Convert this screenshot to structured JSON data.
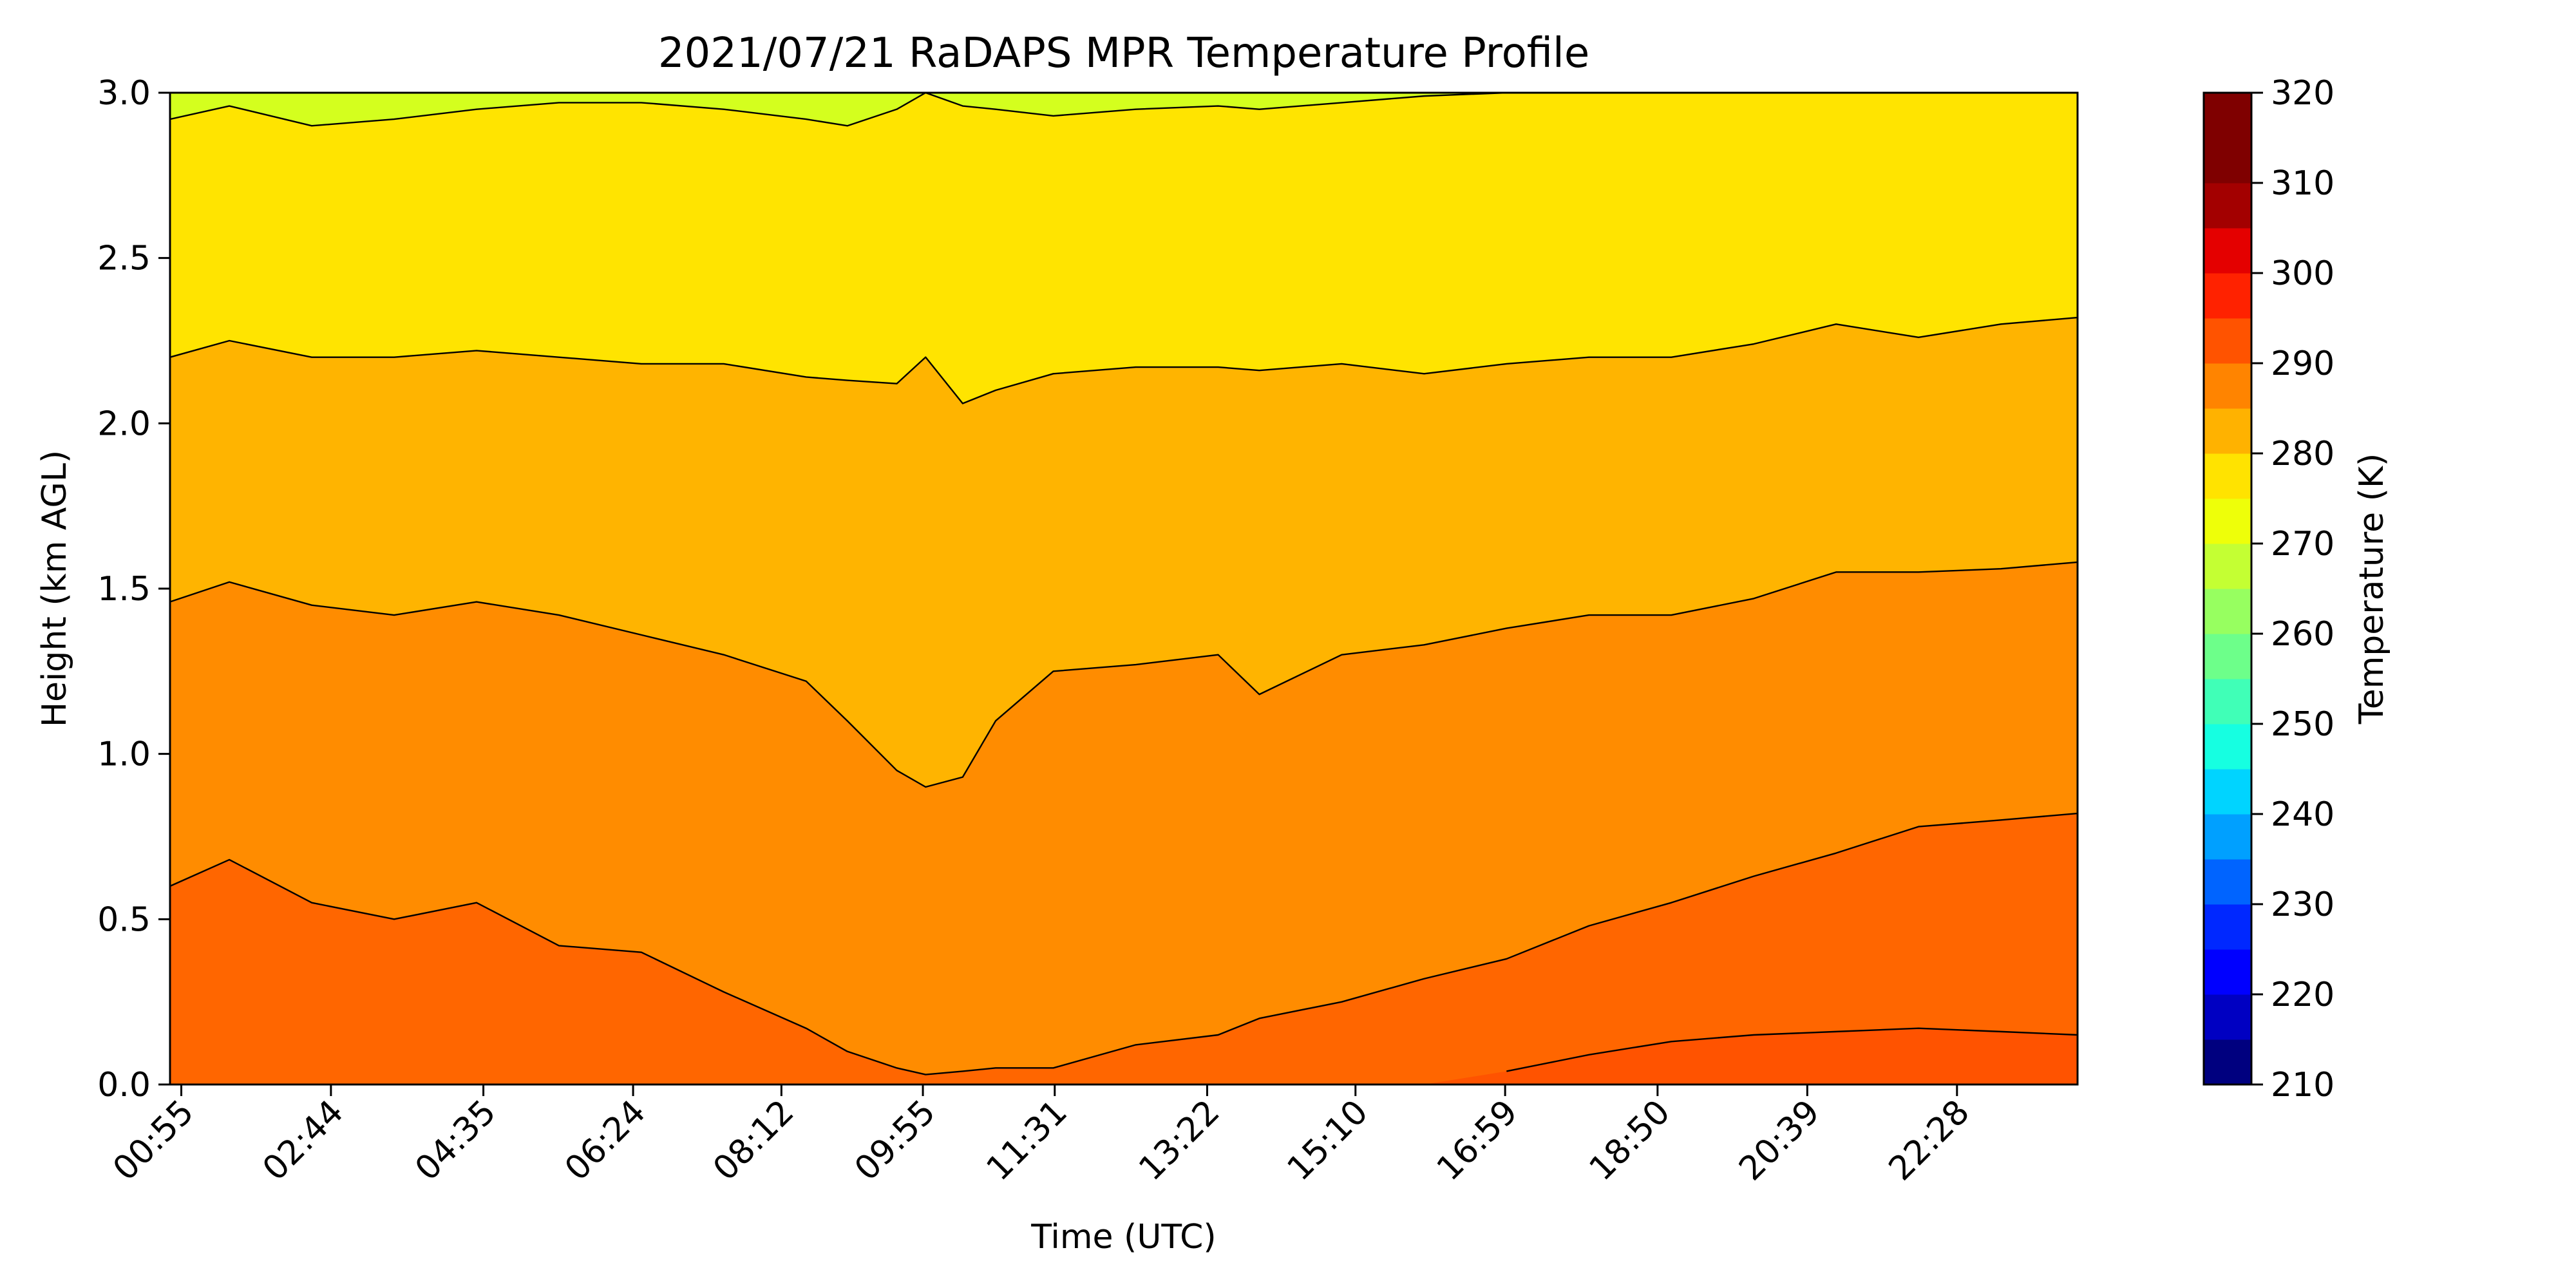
{
  "chart_data": {
    "type": "heatmap",
    "subtype": "filled-contour",
    "title": "2021/07/21 RaDAPS MPR Temperature Profile",
    "xlabel": "Time (UTC)",
    "ylabel": "Height (km AGL)",
    "ylim": [
      0,
      3.0
    ],
    "yticks": [
      "0.0",
      "0.5",
      "1.0",
      "1.5",
      "2.0",
      "2.5",
      "3.0"
    ],
    "xlim_hours": [
      0.78,
      23.93
    ],
    "xticks": [
      {
        "hour": 0.917,
        "label": "00:55"
      },
      {
        "hour": 2.733,
        "label": "02:44"
      },
      {
        "hour": 4.583,
        "label": "04:35"
      },
      {
        "hour": 6.4,
        "label": "06:24"
      },
      {
        "hour": 8.2,
        "label": "08:12"
      },
      {
        "hour": 9.917,
        "label": "09:55"
      },
      {
        "hour": 11.517,
        "label": "11:31"
      },
      {
        "hour": 13.367,
        "label": "13:22"
      },
      {
        "hour": 15.167,
        "label": "15:10"
      },
      {
        "hour": 16.983,
        "label": "16:59"
      },
      {
        "hour": 18.833,
        "label": "18:50"
      },
      {
        "hour": 20.65,
        "label": "20:39"
      },
      {
        "hour": 22.467,
        "label": "22:28"
      }
    ],
    "colorbar": {
      "label": "Temperature (K)",
      "min": 210,
      "max": 320,
      "step": 5,
      "ticks": [
        "210",
        "220",
        "230",
        "240",
        "250",
        "260",
        "270",
        "280",
        "290",
        "300",
        "310",
        "320"
      ],
      "colors": [
        "#00007f",
        "#0000c2",
        "#0000ff",
        "#0028ff",
        "#0064ff",
        "#00a0ff",
        "#00d4ff",
        "#16ffe1",
        "#40ffb7",
        "#6dff8a",
        "#97ff60",
        "#c4ff33",
        "#eeff09",
        "#ffe300",
        "#ffb200",
        "#ff8400",
        "#ff5300",
        "#ff2200",
        "#e40000",
        "#a30000",
        "#7f0000",
        "#7f0000"
      ]
    },
    "contour_bands_K": [
      {
        "range": "300-305",
        "color": "#ff5300"
      },
      {
        "range": "295-300",
        "color": "#ff6600"
      },
      {
        "range": "290-295",
        "color": "#ff8c00"
      },
      {
        "range": "285-290",
        "color": "#ffb400"
      },
      {
        "range": "280-285",
        "color": "#ffe400"
      },
      {
        "range": "275-280",
        "color": "#d4ff1e"
      }
    ],
    "contours_km": {
      "hours": [
        0.78,
        1.5,
        2.5,
        3.5,
        4.5,
        5.5,
        6.5,
        7.5,
        8.5,
        9.0,
        9.6,
        9.95,
        10.4,
        10.8,
        11.5,
        12.5,
        13.5,
        14.0,
        15.0,
        16.0,
        17.0,
        18.0,
        19.0,
        20.0,
        21.0,
        22.0,
        23.0,
        23.93
      ],
      "iso_305": [
        null,
        null,
        null,
        null,
        null,
        null,
        null,
        null,
        null,
        null,
        null,
        null,
        null,
        null,
        null,
        null,
        null,
        null,
        null,
        null,
        0.04,
        0.09,
        0.13,
        0.15,
        0.16,
        0.17,
        0.16,
        0.15
      ],
      "iso_300": [
        0.6,
        0.68,
        0.55,
        0.5,
        0.55,
        0.42,
        0.4,
        0.28,
        0.17,
        0.1,
        0.05,
        0.03,
        0.04,
        0.05,
        0.05,
        0.12,
        0.15,
        0.2,
        0.25,
        0.32,
        0.38,
        0.48,
        0.55,
        0.63,
        0.7,
        0.78,
        0.8,
        0.82
      ],
      "iso_295": [
        1.46,
        1.52,
        1.45,
        1.42,
        1.46,
        1.42,
        1.36,
        1.3,
        1.22,
        1.1,
        0.95,
        0.9,
        0.93,
        1.1,
        1.25,
        1.27,
        1.3,
        1.18,
        1.3,
        1.33,
        1.38,
        1.42,
        1.42,
        1.47,
        1.55,
        1.55,
        1.56,
        1.58
      ],
      "iso_290": [
        2.2,
        2.25,
        2.2,
        2.2,
        2.22,
        2.2,
        2.18,
        2.18,
        2.14,
        2.13,
        2.12,
        2.2,
        2.06,
        2.1,
        2.15,
        2.17,
        2.17,
        2.16,
        2.18,
        2.15,
        2.18,
        2.2,
        2.2,
        2.24,
        2.3,
        2.26,
        2.3,
        2.32
      ],
      "iso_285": [
        2.92,
        2.96,
        2.9,
        2.92,
        2.95,
        2.97,
        2.97,
        2.95,
        2.92,
        2.9,
        2.95,
        3.0,
        2.96,
        2.95,
        2.93,
        2.95,
        2.96,
        2.95,
        2.97,
        2.99,
        3.0,
        3.0,
        3.0,
        3.0,
        3.0,
        3.0,
        3.0,
        3.0
      ]
    }
  }
}
